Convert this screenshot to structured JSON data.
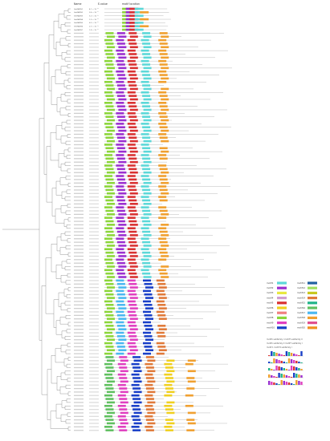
{
  "header": {
    "name": "Name",
    "evalue": "E-value",
    "motif_location": "motif location"
  },
  "motif_colors": {
    "motif1": "#5cd8d8",
    "motif2": "#d93232",
    "motif3": "#9b30d0",
    "motif4": "#f0d020",
    "motif5": "#4ab8f0",
    "motif6": "#1a40c8",
    "motif7": "#8cd63a",
    "motif8": "#e040c0",
    "motif9": "#f0a030",
    "motif10": "#22b48a",
    "motif11": "#e07a3a",
    "motif12": "#e8e840",
    "motif13": "#d0a0d0",
    "motif14": "#60c060",
    "motif15": "#f08080",
    "motif16": "#2060a0",
    "motif17": "#a0e060",
    "motif18": "#c8c820",
    "motif19": "#e05090",
    "motif20": "#f09020",
    "backbone": "#bbbbbb",
    "tree": "#555555"
  },
  "legend": {
    "motifs": [
      {
        "name": "motif1",
        "color": "motif1"
      },
      {
        "name": "motif2",
        "color": "motif3"
      },
      {
        "name": "motif3",
        "color": "motif12"
      },
      {
        "name": "motif4",
        "color": "motif13"
      },
      {
        "name": "motif5",
        "color": "motif2"
      },
      {
        "name": "motif6",
        "color": "motif4"
      },
      {
        "name": "motif7",
        "color": "motif15"
      },
      {
        "name": "motif8",
        "color": "motif7"
      },
      {
        "name": "motif9",
        "color": "motif8"
      },
      {
        "name": "motif10",
        "color": "motif6"
      },
      {
        "name": "motif11",
        "color": "motif16"
      },
      {
        "name": "motif12",
        "color": "motif17"
      },
      {
        "name": "motif13",
        "color": "motif18"
      },
      {
        "name": "motif14",
        "color": "motif11"
      },
      {
        "name": "motif15",
        "color": "motif10"
      },
      {
        "name": "motif16",
        "color": "motif14"
      },
      {
        "name": "motif17",
        "color": "motif5"
      },
      {
        "name": "motif18",
        "color": "motif9"
      },
      {
        "name": "motif19",
        "color": "motif19"
      },
      {
        "name": "motif20",
        "color": "motif20"
      }
    ],
    "notes": [
      "motif1 subfamily I  motif7 subfamily II",
      "motif1 subfamily II  motif7 subfamily I",
      "motif 1 motif 8 subfamily I"
    ]
  },
  "genes": [
    {
      "name": "GmMADS1",
      "evalue": "4.1 × 10⁻³⁵",
      "len": 170,
      "motifs": [
        [
          48,
          7
        ],
        [
          58,
          3
        ],
        [
          68,
          2
        ],
        [
          82,
          1
        ]
      ]
    },
    {
      "name": "GmMADS2",
      "evalue": "3.4 × 10⁻²⁹",
      "len": 175,
      "motifs": [
        [
          48,
          7
        ],
        [
          58,
          3
        ],
        [
          68,
          2
        ],
        [
          82,
          1
        ],
        [
          96,
          9
        ]
      ]
    },
    {
      "name": "GmMADS3",
      "evalue": "3.0 × 10⁻³⁰",
      "len": 160,
      "motifs": [
        [
          48,
          7
        ],
        [
          58,
          3
        ],
        [
          68,
          2
        ],
        [
          82,
          1
        ]
      ]
    },
    {
      "name": "GmMADS4",
      "evalue": "1.9 × 10⁻³⁴",
      "len": 180,
      "motifs": [
        [
          48,
          7
        ],
        [
          58,
          3
        ],
        [
          68,
          2
        ],
        [
          82,
          1
        ],
        [
          96,
          9
        ]
      ]
    },
    {
      "name": "GmMADS5",
      "evalue": "6.5 × 10⁻³¹",
      "len": 165,
      "motifs": [
        [
          48,
          7
        ],
        [
          58,
          3
        ],
        [
          68,
          2
        ],
        [
          82,
          1
        ]
      ]
    },
    {
      "name": "GmMADS6",
      "evalue": "2.3 × 10⁻³²",
      "len": 172,
      "motifs": [
        [
          48,
          7
        ],
        [
          58,
          3
        ],
        [
          68,
          2
        ],
        [
          82,
          1
        ],
        [
          96,
          9
        ]
      ]
    },
    {
      "name": "GmMADS7",
      "evalue": "1.8 × 10⁻³⁰",
      "len": 168,
      "motifs": [
        [
          48,
          7
        ],
        [
          58,
          3
        ],
        [
          68,
          2
        ],
        [
          82,
          1
        ]
      ]
    }
  ]
}
